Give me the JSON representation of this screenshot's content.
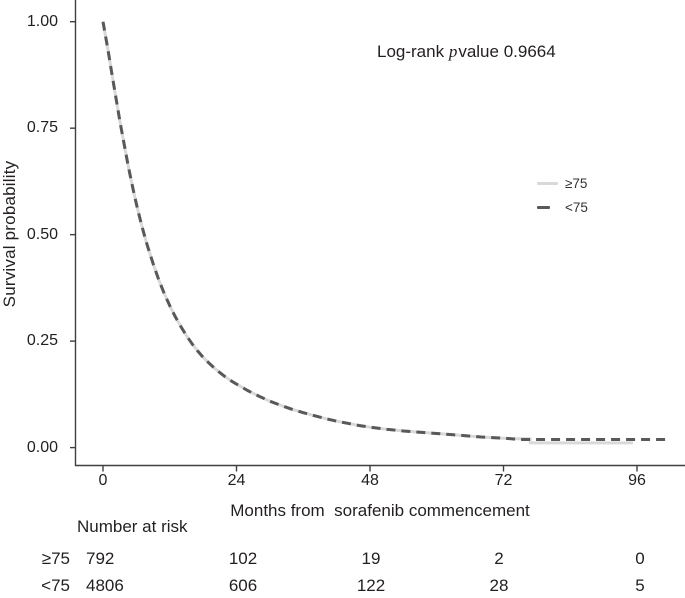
{
  "colors": {
    "series_ge75": "#d9d9d9",
    "series_lt75": "#58595b",
    "axis": "#3f3f3f",
    "text": "#231f20"
  },
  "annotation": {
    "prefix": "Log-rank ",
    "p": "p",
    "suffix": "value 0.9664"
  },
  "chart_data": {
    "type": "line",
    "subtype": "kaplan_meier_survival",
    "title": "",
    "xlabel": "Months from  sorafenib commencement",
    "ylabel": "Survival probability",
    "annotation": "Log-rank p value 0.9664",
    "xlim": [
      -5,
      104.5
    ],
    "ylim": [
      0,
      1.04
    ],
    "grid": false,
    "legend_position": "inside-right",
    "xticks": [
      0,
      24,
      48,
      72,
      96
    ],
    "yticks": [
      {
        "v": 0.0,
        "label": "0.00"
      },
      {
        "v": 0.25,
        "label": "0.25"
      },
      {
        "v": 0.5,
        "label": "0.50"
      },
      {
        "v": 0.75,
        "label": "0.75"
      },
      {
        "v": 1.0,
        "label": "1.00"
      }
    ],
    "series": [
      {
        "name": "≥75",
        "color": "#d9d9d9",
        "line_style": "solid",
        "points": [
          [
            0,
            1
          ],
          [
            0.5,
            0.963
          ],
          [
            1,
            0.925
          ],
          [
            1.5,
            0.886
          ],
          [
            2,
            0.847
          ],
          [
            2.5,
            0.808
          ],
          [
            3,
            0.769
          ],
          [
            3.5,
            0.733
          ],
          [
            4,
            0.698
          ],
          [
            4.5,
            0.664
          ],
          [
            5,
            0.632
          ],
          [
            5.5,
            0.601
          ],
          [
            6,
            0.572
          ],
          [
            6.5,
            0.545
          ],
          [
            7,
            0.52
          ],
          [
            7.5,
            0.496
          ],
          [
            8,
            0.473
          ],
          [
            9,
            0.432
          ],
          [
            10,
            0.395
          ],
          [
            11,
            0.362
          ],
          [
            12,
            0.333
          ],
          [
            13,
            0.307
          ],
          [
            14,
            0.284
          ],
          [
            15,
            0.263
          ],
          [
            16,
            0.244
          ],
          [
            17,
            0.227
          ],
          [
            18,
            0.212
          ],
          [
            19,
            0.199
          ],
          [
            20,
            0.187
          ],
          [
            21,
            0.176
          ],
          [
            22,
            0.166
          ],
          [
            23,
            0.157
          ],
          [
            24,
            0.149
          ],
          [
            26,
            0.134
          ],
          [
            28,
            0.121
          ],
          [
            30,
            0.109
          ],
          [
            32,
            0.099
          ],
          [
            34,
            0.09
          ],
          [
            36,
            0.082
          ],
          [
            38,
            0.075
          ],
          [
            40,
            0.068
          ],
          [
            42,
            0.062
          ],
          [
            44,
            0.057
          ],
          [
            46,
            0.052
          ],
          [
            48,
            0.048
          ],
          [
            51,
            0.043
          ],
          [
            54,
            0.039
          ],
          [
            57,
            0.036
          ],
          [
            60,
            0.033
          ],
          [
            63,
            0.03
          ],
          [
            66,
            0.027
          ],
          [
            68,
            0.025
          ],
          [
            70,
            0.0235
          ],
          [
            72,
            0.022
          ],
          [
            74,
            0.021
          ],
          [
            76.8,
            0.021
          ],
          [
            76.8,
            0.011
          ],
          [
            95.3,
            0.011
          ]
        ]
      },
      {
        "name": "<75",
        "color": "#58595b",
        "line_style": "dashed",
        "points": [
          [
            0,
            1
          ],
          [
            0.5,
            0.963
          ],
          [
            1,
            0.925
          ],
          [
            1.5,
            0.886
          ],
          [
            2,
            0.847
          ],
          [
            2.5,
            0.808
          ],
          [
            3,
            0.769
          ],
          [
            3.5,
            0.733
          ],
          [
            4,
            0.698
          ],
          [
            4.5,
            0.664
          ],
          [
            5,
            0.632
          ],
          [
            5.5,
            0.601
          ],
          [
            6,
            0.572
          ],
          [
            6.5,
            0.545
          ],
          [
            7,
            0.52
          ],
          [
            7.5,
            0.496
          ],
          [
            8,
            0.473
          ],
          [
            9,
            0.432
          ],
          [
            10,
            0.395
          ],
          [
            11,
            0.362
          ],
          [
            12,
            0.333
          ],
          [
            13,
            0.307
          ],
          [
            14,
            0.284
          ],
          [
            15,
            0.263
          ],
          [
            16,
            0.244
          ],
          [
            17,
            0.227
          ],
          [
            18,
            0.212
          ],
          [
            19,
            0.199
          ],
          [
            20,
            0.187
          ],
          [
            21,
            0.176
          ],
          [
            22,
            0.166
          ],
          [
            23,
            0.157
          ],
          [
            24,
            0.149
          ],
          [
            26,
            0.134
          ],
          [
            28,
            0.121
          ],
          [
            30,
            0.109
          ],
          [
            32,
            0.099
          ],
          [
            34,
            0.09
          ],
          [
            36,
            0.082
          ],
          [
            38,
            0.075
          ],
          [
            40,
            0.068
          ],
          [
            42,
            0.062
          ],
          [
            44,
            0.057
          ],
          [
            46,
            0.052
          ],
          [
            48,
            0.048
          ],
          [
            51,
            0.043
          ],
          [
            54,
            0.039
          ],
          [
            57,
            0.036
          ],
          [
            60,
            0.033
          ],
          [
            63,
            0.03
          ],
          [
            66,
            0.027
          ],
          [
            68,
            0.025
          ],
          [
            70,
            0.0235
          ],
          [
            72,
            0.022
          ],
          [
            75,
            0.019
          ],
          [
            101.5,
            0.019
          ]
        ]
      }
    ],
    "risk_table": {
      "header": "Number at risk",
      "rows": [
        {
          "label": "≥75",
          "values": [
            "792",
            "102",
            "19",
            "2",
            "0"
          ]
        },
        {
          "label": "<75",
          "values": [
            "4806",
            "606",
            "122",
            "28",
            "5"
          ]
        }
      ]
    }
  }
}
